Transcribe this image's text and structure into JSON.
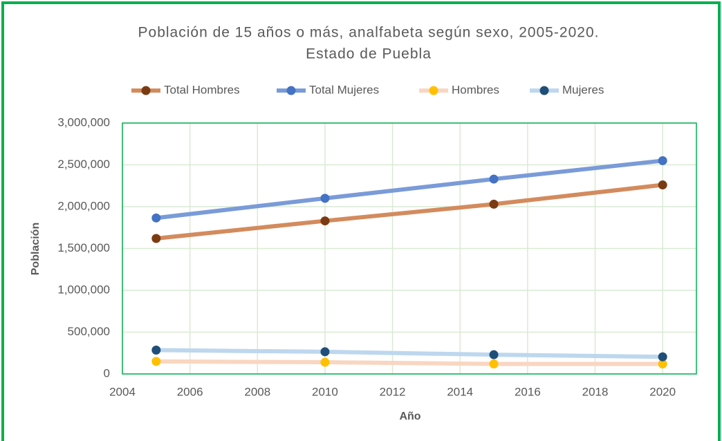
{
  "chart_data": {
    "type": "line",
    "title": [
      "Población de 15 años o más, analfabeta según sexo, 2005-2020.",
      "Estado de Puebla"
    ],
    "x_label": "Año",
    "y_label": "Población",
    "x": [
      2005,
      2010,
      2015,
      2020
    ],
    "series": [
      {
        "name": "Total Hombres",
        "color": "#d38b5d",
        "marker_color": "#7b3b12",
        "values": [
          1620000,
          1830000,
          2030000,
          2260000
        ]
      },
      {
        "name": "Total Mujeres",
        "color": "#7a9bd8",
        "marker_color": "#4472c4",
        "values": [
          1865000,
          2100000,
          2330000,
          2550000
        ]
      },
      {
        "name": "Hombres",
        "color": "#f9d6c1",
        "marker_color": "#ffc000",
        "values": [
          150000,
          140000,
          120000,
          120000
        ]
      },
      {
        "name": "Mujeres",
        "color": "#bdd7ee",
        "marker_color": "#1f4e79",
        "values": [
          285000,
          265000,
          230000,
          205000
        ]
      }
    ],
    "xlim": [
      2004,
      2021
    ],
    "xticks": [
      2004,
      2006,
      2008,
      2010,
      2012,
      2014,
      2016,
      2018,
      2020
    ],
    "ylim": [
      0,
      3000000
    ],
    "yticks": [
      0,
      {
        "value": 500000,
        "label": "500,000"
      },
      {
        "value": 1000000,
        "label": "1,000,000"
      },
      {
        "value": 1500000,
        "label": "1,500,000"
      },
      {
        "value": 2000000,
        "label": "2,000,000"
      },
      {
        "value": 2500000,
        "label": "2,500,000"
      },
      {
        "value": 3000000,
        "label": "3,000,000"
      }
    ],
    "grid": true,
    "legend": "top"
  }
}
